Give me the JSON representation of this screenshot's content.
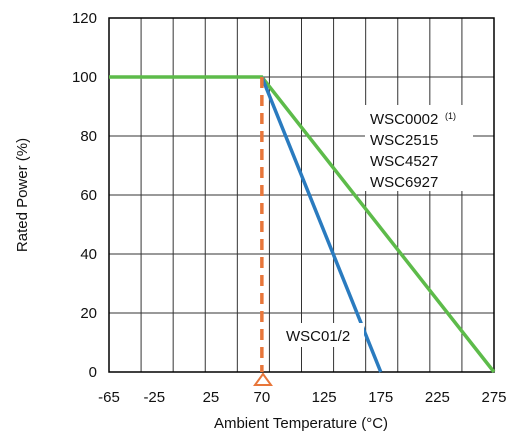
{
  "chart_data": {
    "type": "line",
    "xlabel": "Ambient Temperature (°C)",
    "ylabel": "Rated Power (%)",
    "xlim": [
      -65,
      275
    ],
    "ylim": [
      0,
      120
    ],
    "x_ticks": [
      -65,
      -25,
      25,
      70,
      125,
      175,
      225,
      275
    ],
    "y_ticks": [
      0,
      20,
      40,
      60,
      80,
      100,
      120
    ],
    "grid": true,
    "series": [
      {
        "name": "WSC0002 / WSC2515 / WSC4527 / WSC6927",
        "color": "#5dbb4a",
        "points": [
          [
            -65,
            100
          ],
          [
            70,
            100
          ],
          [
            275,
            0
          ]
        ]
      },
      {
        "name": "WSC01/2",
        "color": "#2a7bbf",
        "points": [
          [
            70,
            100
          ],
          [
            175,
            0
          ]
        ]
      }
    ],
    "marker_line": {
      "x": 70,
      "color": "#e8763a",
      "style": "dashed"
    },
    "annotations": {
      "group_a": [
        "WSC0002",
        "WSC2515",
        "WSC4527",
        "WSC6927"
      ],
      "group_a_note": "(1)",
      "group_b": "WSC01/2"
    }
  }
}
